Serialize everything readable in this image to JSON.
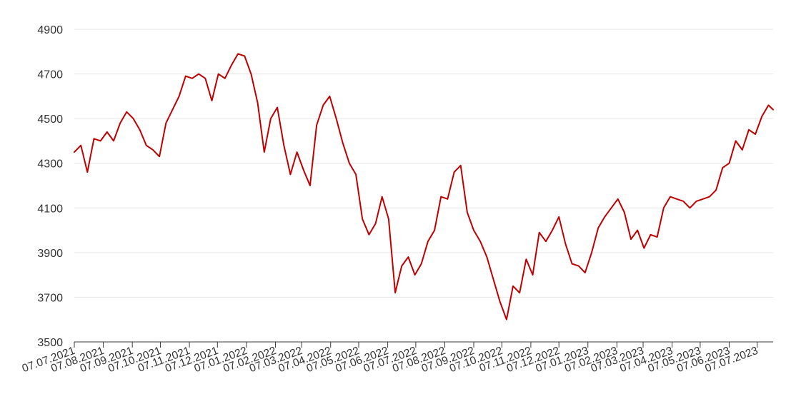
{
  "chart_data": {
    "type": "line",
    "title": "",
    "xlabel": "",
    "ylabel": "",
    "ylim": [
      3500,
      4900
    ],
    "yticks": [
      3500,
      3700,
      3900,
      4100,
      4300,
      4500,
      4700,
      4900
    ],
    "grid": true,
    "legend": "none",
    "line_color": "#c00000",
    "x_tick_labels": [
      "07.07.2021",
      "07.08.2021",
      "07.09.2021",
      "07.10.2021",
      "07.11.2021",
      "07.12.2021",
      "07.01.2022",
      "07.02.2022",
      "07.03.2022",
      "07.04.2022",
      "07.05.2022",
      "07.06.2022",
      "07.07.2022",
      "07.08.2022",
      "07.09.2022",
      "07.10.2022",
      "07.11.2022",
      "07.12.2022",
      "07.01.2023",
      "07.02.2023",
      "07.03.2023",
      "07.04.2023",
      "07.05.2023",
      "07.06.2023",
      "07.07.2023"
    ],
    "series": [
      {
        "x": [
          "2021-07-07",
          "2021-07-14",
          "2021-07-21",
          "2021-07-28",
          "2021-08-04",
          "2021-08-11",
          "2021-08-18",
          "2021-08-25",
          "2021-09-01",
          "2021-09-08",
          "2021-09-15",
          "2021-09-22",
          "2021-09-29",
          "2021-10-06",
          "2021-10-13",
          "2021-10-20",
          "2021-10-27",
          "2021-11-03",
          "2021-11-10",
          "2021-11-17",
          "2021-11-24",
          "2021-12-01",
          "2021-12-08",
          "2021-12-15",
          "2021-12-22",
          "2021-12-29",
          "2022-01-05",
          "2022-01-12",
          "2022-01-19",
          "2022-01-26",
          "2022-02-02",
          "2022-02-09",
          "2022-02-16",
          "2022-02-23",
          "2022-03-02",
          "2022-03-09",
          "2022-03-16",
          "2022-03-23",
          "2022-03-30",
          "2022-04-06",
          "2022-04-13",
          "2022-04-20",
          "2022-04-27",
          "2022-05-04",
          "2022-05-11",
          "2022-05-18",
          "2022-05-25",
          "2022-06-01",
          "2022-06-08",
          "2022-06-15",
          "2022-06-22",
          "2022-06-29",
          "2022-07-06",
          "2022-07-13",
          "2022-07-20",
          "2022-07-27",
          "2022-08-03",
          "2022-08-10",
          "2022-08-17",
          "2022-08-24",
          "2022-08-31",
          "2022-09-07",
          "2022-09-14",
          "2022-09-21",
          "2022-09-28",
          "2022-10-05",
          "2022-10-12",
          "2022-10-19",
          "2022-10-26",
          "2022-11-02",
          "2022-11-09",
          "2022-11-16",
          "2022-11-23",
          "2022-11-30",
          "2022-12-07",
          "2022-12-14",
          "2022-12-21",
          "2022-12-28",
          "2023-01-04",
          "2023-01-11",
          "2023-01-18",
          "2023-01-25",
          "2023-02-01",
          "2023-02-08",
          "2023-02-15",
          "2023-02-22",
          "2023-03-01",
          "2023-03-08",
          "2023-03-15",
          "2023-03-22",
          "2023-03-29",
          "2023-04-05",
          "2023-04-12",
          "2023-04-19",
          "2023-04-26",
          "2023-05-03",
          "2023-05-10",
          "2023-05-17",
          "2023-05-24",
          "2023-05-31",
          "2023-06-07",
          "2023-06-14",
          "2023-06-21",
          "2023-06-28",
          "2023-07-05",
          "2023-07-12",
          "2023-07-19",
          "2023-07-24"
        ],
        "values": [
          4350,
          4380,
          4260,
          4410,
          4400,
          4440,
          4400,
          4480,
          4530,
          4500,
          4450,
          4380,
          4360,
          4330,
          4480,
          4540,
          4600,
          4690,
          4680,
          4700,
          4680,
          4580,
          4700,
          4680,
          4740,
          4790,
          4780,
          4700,
          4570,
          4350,
          4500,
          4550,
          4380,
          4250,
          4350,
          4270,
          4200,
          4470,
          4560,
          4600,
          4500,
          4390,
          4300,
          4250,
          4050,
          3980,
          4030,
          4150,
          4050,
          3720,
          3840,
          3880,
          3800,
          3850,
          3950,
          4000,
          4150,
          4140,
          4260,
          4290,
          4080,
          4000,
          3950,
          3880,
          3780,
          3680,
          3600,
          3750,
          3720,
          3870,
          3800,
          3990,
          3950,
          4000,
          4060,
          3940,
          3850,
          3840,
          3810,
          3900,
          4010,
          4060,
          4100,
          4140,
          4080,
          3960,
          4000,
          3920,
          3980,
          3970,
          4100,
          4150,
          4140,
          4130,
          4100,
          4130,
          4140,
          4150,
          4180,
          4280,
          4300,
          4400,
          4360,
          4450,
          4430,
          4510,
          4560,
          4540
        ]
      }
    ]
  }
}
